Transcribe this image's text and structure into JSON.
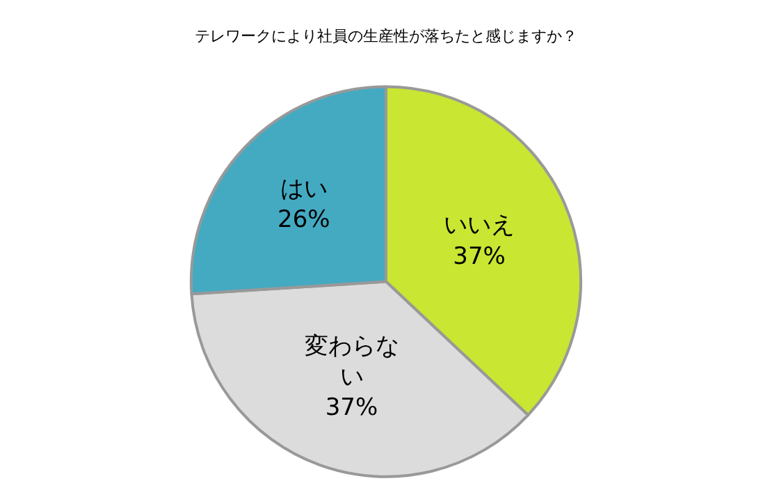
{
  "chart_data": {
    "type": "pie",
    "title": "テレワークにより社員の生産性が落ちたと感じますか？",
    "categories": [
      "いいえ",
      "変わらない",
      "はい"
    ],
    "values": [
      37,
      37,
      26
    ],
    "colors": [
      "#c8e632",
      "#dcdcdc",
      "#44aac2"
    ],
    "value_labels": [
      "37%",
      "37%",
      "26%"
    ],
    "legend": false
  }
}
